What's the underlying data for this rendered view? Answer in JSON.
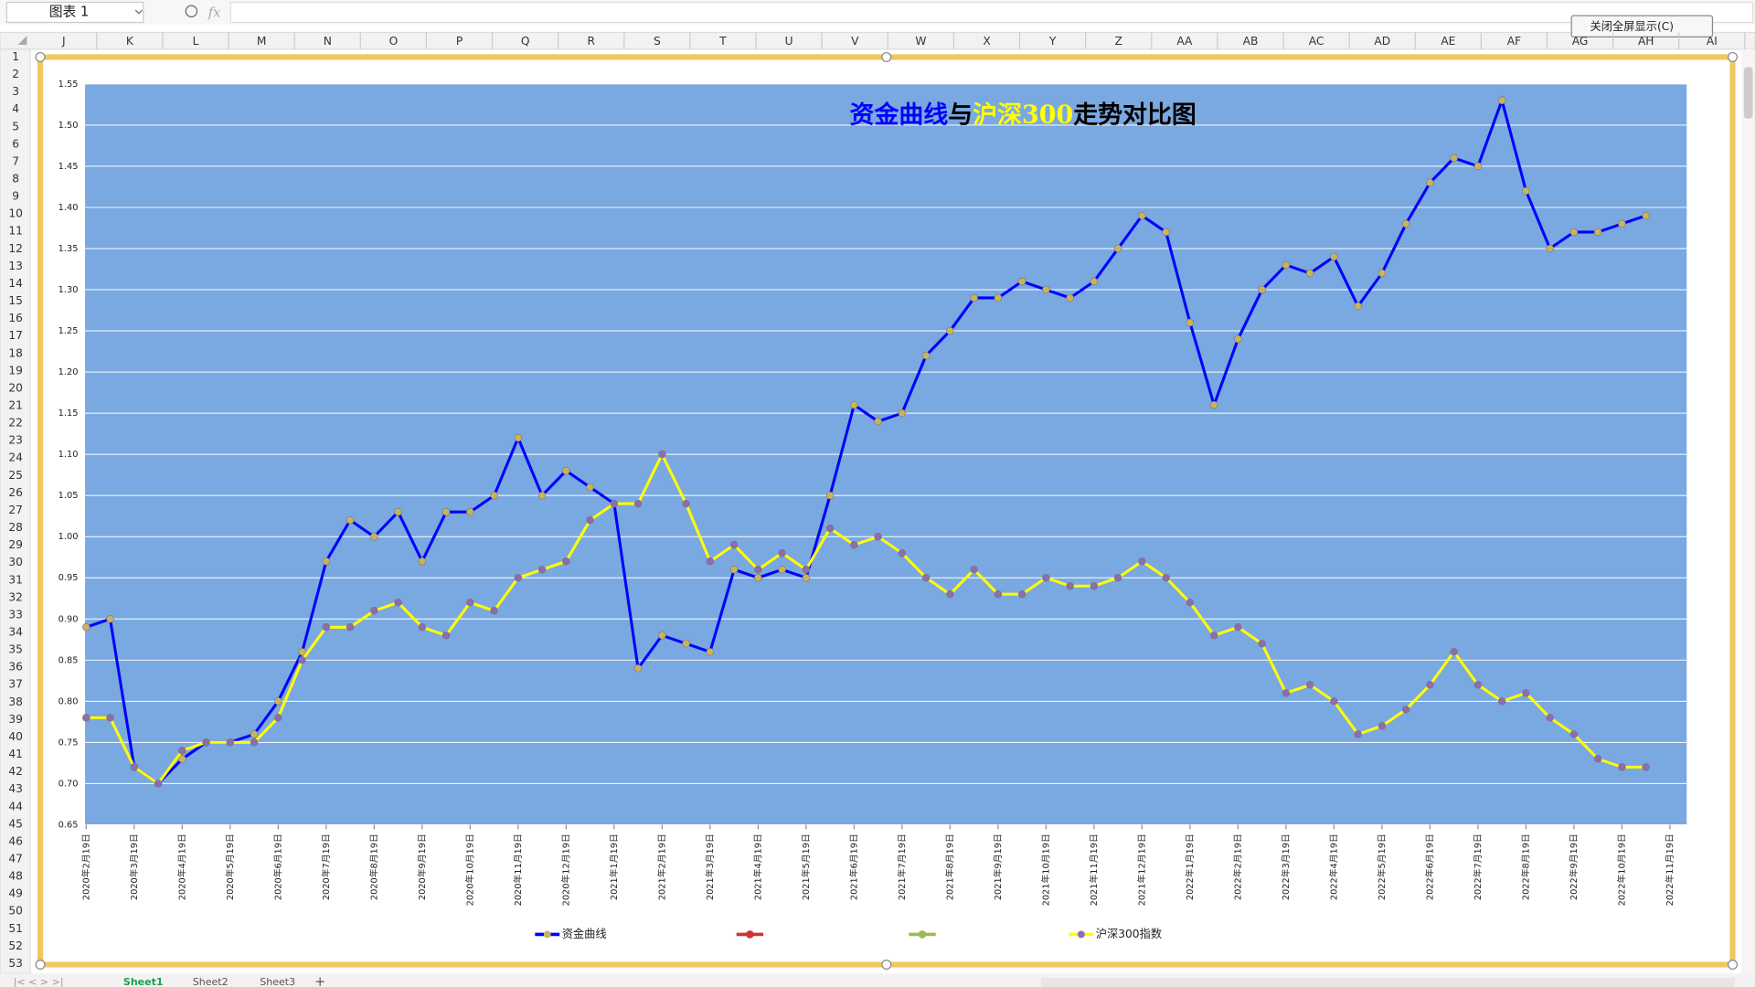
{
  "ui": {
    "name_box": "图表 1",
    "formula_icon": "fx",
    "close_button": "关闭全屏显示(C)",
    "columns": [
      "J",
      "K",
      "L",
      "M",
      "N",
      "O",
      "P",
      "Q",
      "R",
      "S",
      "T",
      "U",
      "V",
      "W",
      "X",
      "Y",
      "Z",
      "AA",
      "AB",
      "AC",
      "AD",
      "AE",
      "AF",
      "AG",
      "AH",
      "AI"
    ],
    "rows": [
      1,
      2,
      3,
      4,
      5,
      6,
      7,
      8,
      9,
      10,
      11,
      12,
      13,
      14,
      15,
      16,
      17,
      18,
      19,
      20,
      21,
      22,
      23,
      24,
      25,
      26,
      27,
      28,
      29,
      30,
      31,
      32,
      33,
      34,
      35,
      36,
      37,
      38,
      39,
      40,
      41,
      42,
      43,
      44,
      45,
      46,
      47,
      48,
      49,
      50,
      51,
      52,
      53
    ],
    "sheets": [
      "Sheet1",
      "Sheet2",
      "Sheet3"
    ],
    "add_sheet": "+"
  },
  "chart_data": {
    "type": "line",
    "title_parts": [
      {
        "text": "资金曲线",
        "color": "#0000ff"
      },
      {
        "text": "与",
        "color": "#000000"
      },
      {
        "text": "沪深300",
        "color": "#ffff00"
      },
      {
        "text": "走势对比图",
        "color": "#000000"
      }
    ],
    "categories": [
      "2020年2月19日",
      null,
      "2020年3月19日",
      null,
      "2020年4月19日",
      null,
      "2020年5月19日",
      null,
      "2020年6月19日",
      null,
      "2020年7月19日",
      null,
      "2020年8月19日",
      null,
      "2020年9月19日",
      null,
      "2020年10月19日",
      null,
      "2020年11月19日",
      null,
      "2020年12月19日",
      null,
      "2021年1月19日",
      null,
      "2021年2月19日",
      null,
      "2021年3月19日",
      null,
      "2021年4月19日",
      null,
      "2021年5月19日",
      null,
      "2021年6月19日",
      null,
      "2021年7月19日",
      null,
      "2021年8月19日",
      null,
      "2021年9月19日",
      null,
      "2021年10月19日",
      null,
      "2021年11月19日",
      null,
      "2021年12月19日",
      null,
      "2022年1月19日",
      null,
      "2022年2月19日",
      null,
      "2022年3月19日",
      null,
      "2022年4月19日",
      null,
      "2022年5月19日",
      null,
      "2022年6月19日",
      null,
      "2022年7月19日",
      null,
      "2022年8月19日",
      null,
      "2022年9月19日",
      null,
      "2022年10月19日",
      null,
      "2022年11月19日"
    ],
    "series": [
      {
        "name": "资金曲线",
        "color": "#0000ff",
        "marker_color": "#c9b45c",
        "values": [
          0.89,
          0.9,
          0.72,
          0.7,
          0.73,
          0.75,
          0.75,
          0.76,
          0.8,
          0.86,
          0.97,
          1.02,
          1.0,
          1.03,
          0.97,
          1.03,
          1.03,
          1.05,
          1.12,
          1.05,
          1.08,
          1.06,
          1.04,
          0.84,
          0.88,
          0.87,
          0.86,
          0.96,
          0.95,
          0.96,
          0.95,
          1.05,
          1.16,
          1.14,
          1.15,
          1.22,
          1.25,
          1.29,
          1.29,
          1.31,
          1.3,
          1.29,
          1.31,
          1.35,
          1.39,
          1.37,
          1.26,
          1.16,
          1.24,
          1.3,
          1.33,
          1.32,
          1.34,
          1.28,
          1.32,
          1.38,
          1.43,
          1.46,
          1.45,
          1.53,
          1.42,
          1.35,
          1.37,
          1.37,
          1.38,
          1.39,
          null
        ]
      },
      {
        "name": "沪深300指数",
        "color": "#ffff00",
        "marker_color": "#8e6cb0",
        "values": [
          0.78,
          0.78,
          0.72,
          0.7,
          0.74,
          0.75,
          0.75,
          0.75,
          0.78,
          0.85,
          0.89,
          0.89,
          0.91,
          0.92,
          0.89,
          0.88,
          0.92,
          0.91,
          0.95,
          0.96,
          0.97,
          1.02,
          1.04,
          1.04,
          1.1,
          1.04,
          0.97,
          0.99,
          0.96,
          0.98,
          0.96,
          1.01,
          0.99,
          1.0,
          0.98,
          0.95,
          0.93,
          0.96,
          0.93,
          0.93,
          0.95,
          0.94,
          0.94,
          0.95,
          0.97,
          0.95,
          0.92,
          0.88,
          0.89,
          0.87,
          0.81,
          0.82,
          0.8,
          0.76,
          0.77,
          0.79,
          0.82,
          0.86,
          0.82,
          0.8,
          0.81,
          0.78,
          0.76,
          0.73,
          0.72,
          0.72,
          null
        ]
      }
    ],
    "ylim": [
      0.65,
      1.55
    ],
    "yticks": [
      0.65,
      {
        "value": 0.7,
        "label": "0.70"
      },
      0.75,
      {
        "value": 0.8,
        "label": "0.80"
      },
      0.85,
      {
        "value": 0.9,
        "label": "0.90"
      },
      0.95,
      {
        "value": 1,
        "label": "1.00"
      },
      1.05,
      {
        "value": 1.1,
        "label": "1.10"
      },
      1.15,
      {
        "value": 1.2,
        "label": "1.20"
      },
      1.25,
      {
        "value": 1.3,
        "label": "1.30"
      },
      1.35,
      {
        "value": 1.4,
        "label": "1.40"
      },
      1.45,
      {
        "value": 1.5,
        "label": "1.50"
      },
      1.55
    ],
    "grid": true,
    "plot_color": "#7aa8e0",
    "legend": "bottom"
  }
}
